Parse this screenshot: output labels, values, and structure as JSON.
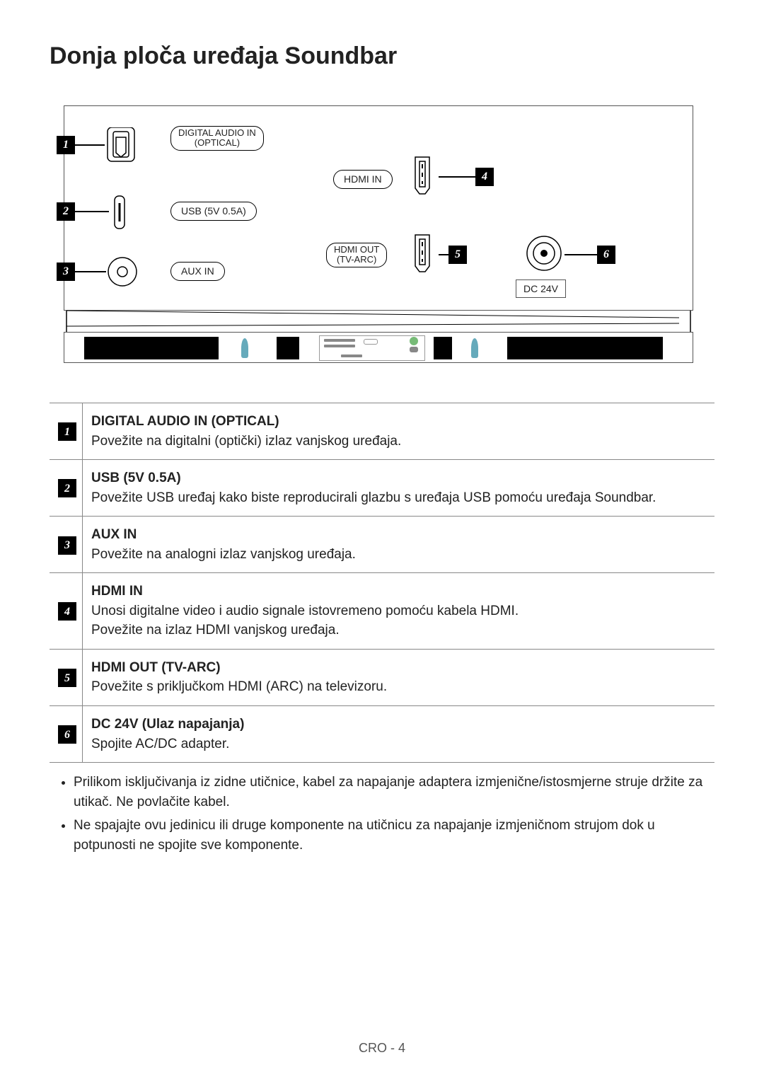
{
  "heading": "Donja ploča uređaja Soundbar",
  "ports": {
    "digital_audio": {
      "label1": "DIGITAL AUDIO IN",
      "label2": "(OPTICAL)"
    },
    "usb": {
      "label": "USB (5V 0.5A)"
    },
    "aux": {
      "label": "AUX IN"
    },
    "hdmi_in": {
      "label": "HDMI IN"
    },
    "hdmi_out": {
      "label1": "HDMI OUT",
      "label2": "(TV-ARC)"
    },
    "dc": {
      "label": "DC 24V"
    }
  },
  "callouts": {
    "n1": "1",
    "n2": "2",
    "n3": "3",
    "n4": "4",
    "n5": "5",
    "n6": "6"
  },
  "table": [
    {
      "num": "1",
      "title": "DIGITAL AUDIO IN (OPTICAL)",
      "body": "Povežite na digitalni (optički) izlaz vanjskog uređaja."
    },
    {
      "num": "2",
      "title": "USB (5V 0.5A)",
      "body": "Povežite USB uređaj kako biste reproducirali glazbu s uređaja USB pomoću uređaja Soundbar."
    },
    {
      "num": "3",
      "title": "AUX IN",
      "body": "Povežite na analogni izlaz vanjskog uređaja."
    },
    {
      "num": "4",
      "title": "HDMI IN",
      "body": "Unosi digitalne video i audio signale istovremeno pomoću kabela HDMI.\nPovežite na izlaz HDMI vanjskog uređaja."
    },
    {
      "num": "5",
      "title": "HDMI OUT (TV-ARC)",
      "body": "Povežite s priključkom HDMI (ARC) na televizoru."
    },
    {
      "num": "6",
      "title": "DC 24V (Ulaz napajanja)",
      "body": "Spojite AC/DC adapter."
    }
  ],
  "notes": [
    "Prilikom isključivanja iz zidne utičnice, kabel za napajanje adaptera izmjenične/istosmjerne struje držite za utikač. Ne povlačite kabel.",
    "Ne spajajte ovu jedinicu ili druge komponente na utičnicu za napajanje izmjeničnom strujom dok u potpunosti ne spojite sve komponente."
  ],
  "footer": "CRO - 4"
}
